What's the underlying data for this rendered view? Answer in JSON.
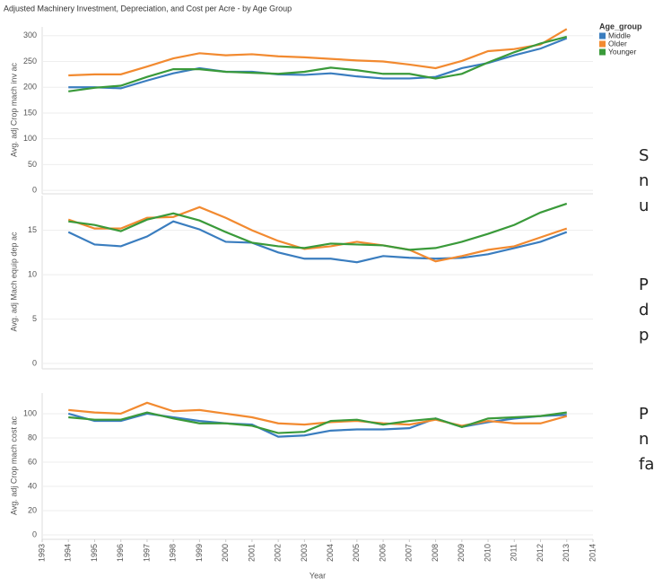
{
  "title": "Adjusted Machinery Investment, Depreciation, and Cost per Acre - by Age Group",
  "legend": {
    "title": "Age_group"
  },
  "side_text": [
    "S",
    "n",
    "u",
    "P",
    "d",
    "p",
    "P",
    "n",
    "fa"
  ],
  "chart_data": [
    {
      "type": "line",
      "y_label": "Avg. adj Crop mach inv ac",
      "x": [
        1994,
        1995,
        1996,
        1997,
        1998,
        1999,
        2000,
        2001,
        2002,
        2003,
        2004,
        2005,
        2006,
        2007,
        2008,
        2009,
        2010,
        2011,
        2012,
        2013
      ],
      "xlim": [
        1993,
        2014
      ],
      "ylim": [
        -5,
        317
      ],
      "yticks": [
        0,
        50,
        100,
        150,
        200,
        250,
        300
      ],
      "grid": true,
      "series": [
        {
          "name": "Middle",
          "color": "#3a7dbf",
          "values": [
            200,
            200,
            198,
            213,
            227,
            237,
            230,
            230,
            225,
            224,
            227,
            221,
            217,
            217,
            220,
            237,
            247,
            262,
            275,
            295
          ]
        },
        {
          "name": "Older",
          "color": "#f28a30",
          "values": [
            223,
            225,
            225,
            240,
            256,
            266,
            262,
            264,
            260,
            258,
            255,
            252,
            250,
            244,
            237,
            251,
            270,
            274,
            283,
            313
          ]
        },
        {
          "name": "Younger",
          "color": "#3a9a3a",
          "values": [
            192,
            199,
            203,
            220,
            235,
            235,
            230,
            228,
            226,
            230,
            238,
            233,
            226,
            226,
            217,
            226,
            248,
            268,
            285,
            298
          ]
        }
      ]
    },
    {
      "type": "line",
      "y_label": "Avg. adj Mach equip dep ac",
      "x": [
        1994,
        1995,
        1996,
        1997,
        1998,
        1999,
        2000,
        2001,
        2002,
        2003,
        2004,
        2005,
        2006,
        2007,
        2008,
        2009,
        2010,
        2011,
        2012,
        2013
      ],
      "xlim": [
        1993,
        2014
      ],
      "ylim": [
        -0.5,
        18.9
      ],
      "yticks": [
        0,
        5,
        10,
        15
      ],
      "grid": true,
      "series": [
        {
          "name": "Middle",
          "color": "#3a7dbf",
          "values": [
            14.8,
            13.4,
            13.2,
            14.3,
            16.0,
            15.1,
            13.7,
            13.6,
            12.5,
            11.8,
            11.8,
            11.4,
            12.1,
            11.9,
            11.8,
            11.9,
            12.3,
            13.0,
            13.7,
            14.8
          ]
        },
        {
          "name": "Older",
          "color": "#f28a30",
          "values": [
            16.2,
            15.2,
            15.2,
            16.4,
            16.5,
            17.6,
            16.4,
            15.0,
            13.8,
            12.9,
            13.2,
            13.7,
            13.3,
            12.8,
            11.5,
            12.1,
            12.8,
            13.2,
            14.2,
            15.2
          ]
        },
        {
          "name": "Younger",
          "color": "#3a9a3a",
          "values": [
            16.0,
            15.6,
            14.9,
            16.2,
            16.9,
            16.1,
            14.8,
            13.6,
            13.2,
            13.0,
            13.5,
            13.4,
            13.3,
            12.8,
            13.0,
            13.7,
            14.6,
            15.6,
            17.0,
            18.0
          ]
        }
      ]
    },
    {
      "type": "line",
      "y_label": "Avg. adj Crop mach cost ac",
      "x_label": "Year",
      "x": [
        1994,
        1995,
        1996,
        1997,
        1998,
        1999,
        2000,
        2001,
        2002,
        2003,
        2004,
        2005,
        2006,
        2007,
        2008,
        2009,
        2010,
        2011,
        2012,
        2013
      ],
      "xlim": [
        1993,
        2014
      ],
      "xticks": [
        1993,
        1994,
        1995,
        1996,
        1997,
        1998,
        1999,
        2000,
        2001,
        2002,
        2003,
        2004,
        2005,
        2006,
        2007,
        2008,
        2009,
        2010,
        2011,
        2012,
        2013,
        2014
      ],
      "ylim": [
        -3,
        117
      ],
      "yticks": [
        0,
        20,
        40,
        60,
        80,
        100
      ],
      "grid": true,
      "series": [
        {
          "name": "Middle",
          "color": "#3a7dbf",
          "values": [
            100,
            94,
            94,
            100,
            97,
            94,
            92,
            91,
            81,
            82,
            86,
            87,
            87,
            88,
            96,
            89,
            93,
            96,
            98,
            99
          ]
        },
        {
          "name": "Older",
          "color": "#f28a30",
          "values": [
            103,
            101,
            100,
            109,
            102,
            103,
            100,
            97,
            92,
            91,
            93,
            94,
            92,
            91,
            95,
            90,
            94,
            92,
            92,
            98
          ]
        },
        {
          "name": "Younger",
          "color": "#3a9a3a",
          "values": [
            97,
            95,
            95,
            101,
            96,
            92,
            92,
            90,
            84,
            85,
            94,
            95,
            91,
            94,
            96,
            89,
            96,
            97,
            98,
            101
          ]
        }
      ]
    }
  ]
}
